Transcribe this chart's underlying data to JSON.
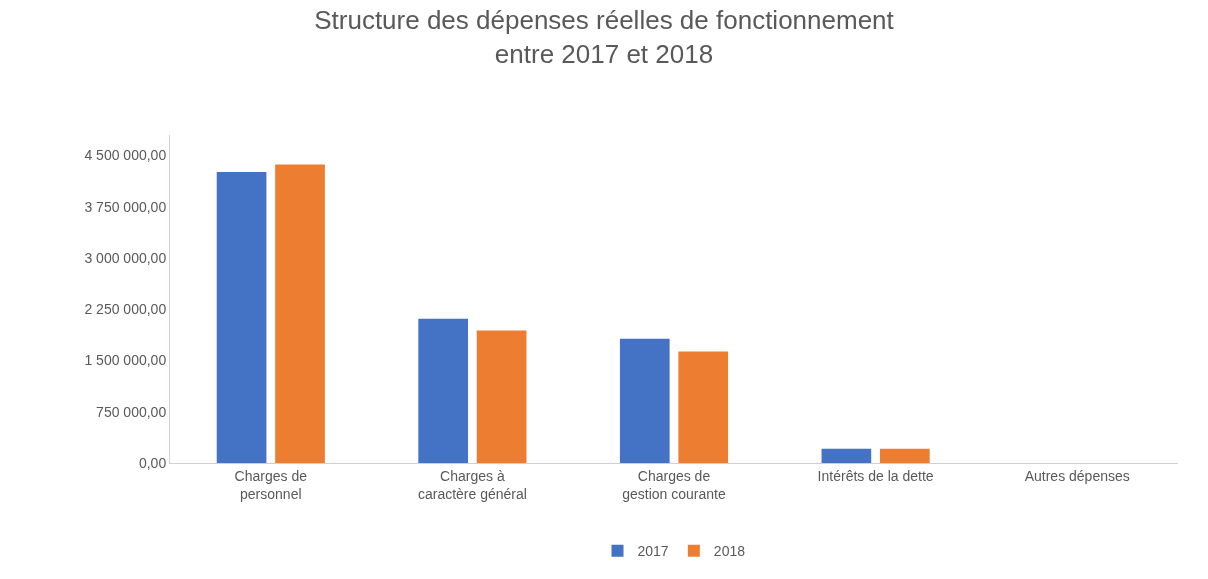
{
  "chart_data": {
    "type": "bar",
    "title": "Structure des dépenses réelles de fonctionnement\nentre 2017 et 2018",
    "categories": [
      "Charges de\npersonnel",
      "Charges à\ncaractère général",
      "Charges de\ngestion courante",
      "Intérêts de la dette",
      "Autres dépenses"
    ],
    "series": [
      {
        "name": "2017",
        "color": "#4472c4",
        "values": [
          4260000,
          2110000,
          1820000,
          210000,
          0
        ]
      },
      {
        "name": "2018",
        "color": "#ed7d31",
        "values": [
          4370000,
          1940000,
          1630000,
          210000,
          0
        ]
      }
    ],
    "ylim": [
      0,
      4800000
    ],
    "yticks": [
      {
        "value": 0,
        "label": "0,00"
      },
      {
        "value": 750000,
        "label": "750 000,00"
      },
      {
        "value": 1500000,
        "label": "1 500 000,00"
      },
      {
        "value": 2250000,
        "label": "2 250 000,00"
      },
      {
        "value": 3000000,
        "label": "3 000 000,00"
      },
      {
        "value": 3750000,
        "label": "3 750 000,00"
      },
      {
        "value": 4500000,
        "label": "4 500 000,00"
      }
    ],
    "legend": "bottom"
  }
}
